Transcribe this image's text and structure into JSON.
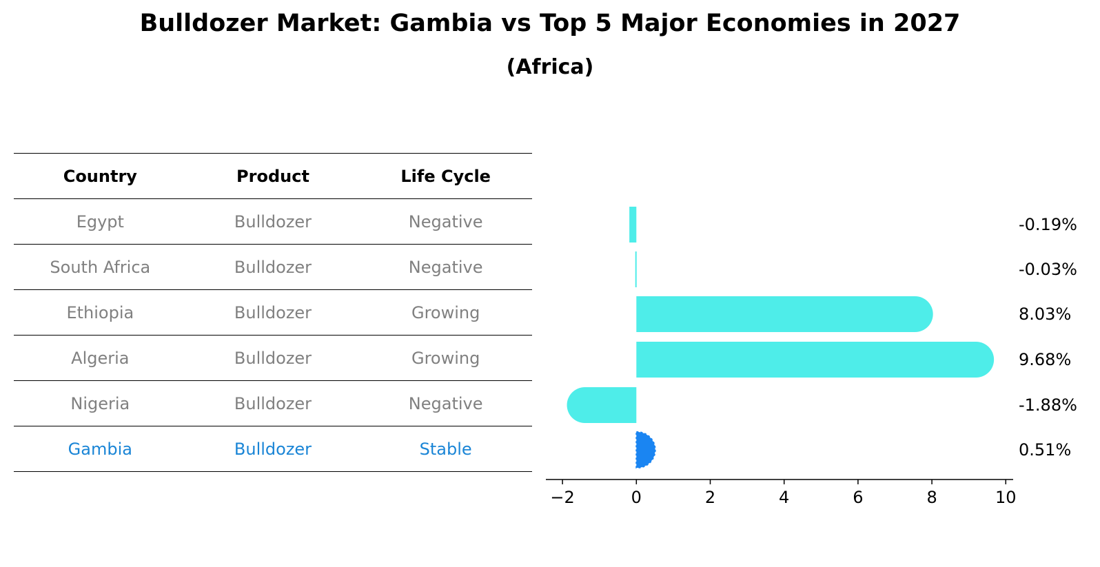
{
  "title": "Bulldozer Market: Gambia vs Top 5 Major Economies in 2027",
  "subtitle": "(Africa)",
  "table": {
    "headers": [
      "Country",
      "Product",
      "Life Cycle"
    ],
    "rows": [
      {
        "country": "Egypt",
        "product": "Bulldozer",
        "life_cycle": "Negative"
      },
      {
        "country": "South Africa",
        "product": "Bulldozer",
        "life_cycle": "Negative"
      },
      {
        "country": "Ethiopia",
        "product": "Bulldozer",
        "life_cycle": "Growing"
      },
      {
        "country": "Algeria",
        "product": "Bulldozer",
        "life_cycle": "Growing"
      },
      {
        "country": "Nigeria",
        "product": "Bulldozer",
        "life_cycle": "Negative"
      },
      {
        "country": "Gambia",
        "product": "Bulldozer",
        "life_cycle": "Stable"
      }
    ]
  },
  "colors": {
    "bar": "#4eede9",
    "highlight_bar": "#1a85f2",
    "highlight_text": "#1a85d6",
    "muted_text": "#808080"
  },
  "chart_data": {
    "type": "bar",
    "orientation": "horizontal",
    "categories": [
      "Egypt",
      "South Africa",
      "Ethiopia",
      "Algeria",
      "Nigeria",
      "Gambia"
    ],
    "values": [
      -0.19,
      -0.03,
      8.03,
      9.68,
      -1.88,
      0.51
    ],
    "value_labels": [
      "-0.19%",
      "-0.03%",
      "8.03%",
      "9.68%",
      "-1.88%",
      "0.51%"
    ],
    "highlight": "Gambia",
    "xlim": [
      -2.45,
      10.2
    ],
    "xticks": [
      -2,
      0,
      2,
      4,
      6,
      8,
      10
    ],
    "xtick_labels": [
      "−2",
      "0",
      "2",
      "4",
      "6",
      "8",
      "10"
    ],
    "xlabel": "",
    "ylabel": "",
    "grid": false
  }
}
